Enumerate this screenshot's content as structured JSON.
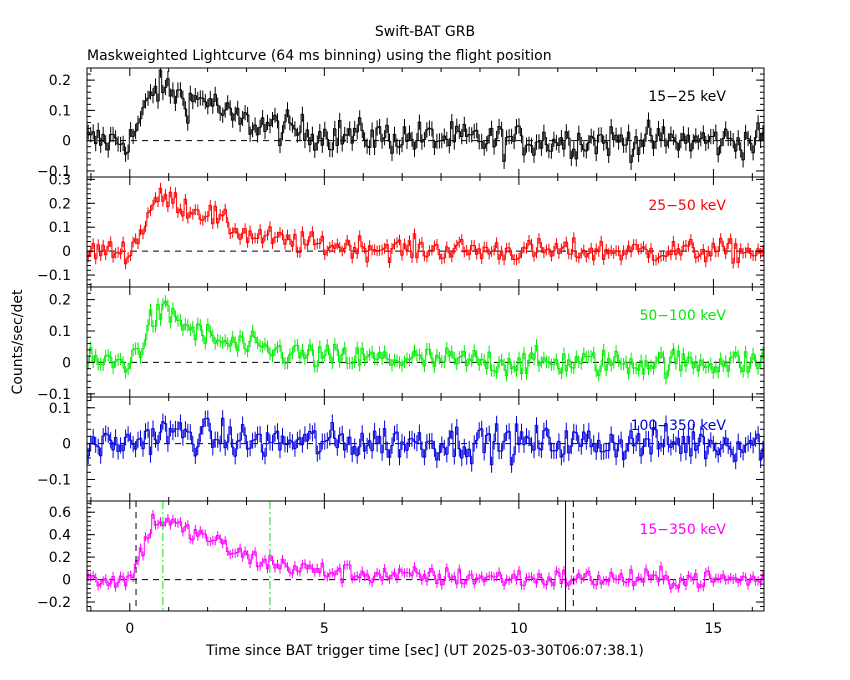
{
  "chart_data": {
    "type": "line",
    "title": "Swift-BAT GRB",
    "subtitle": "Maskweighted Lightcurve (64 ms binning) using the flight position",
    "xlabel": "Time since BAT trigger time [sec] (UT 2025-03-30T06:07:38.1)",
    "ylabel": "Counts/sec/det",
    "xlim": [
      -1.1,
      16.3
    ],
    "x_ticks": [
      0,
      5,
      10,
      15
    ],
    "grid": false,
    "bin_width_sec": 0.064,
    "panels": [
      {
        "name": "15-25 keV",
        "label": "15−25 keV",
        "color": "#000000",
        "ylim": [
          -0.12,
          0.24
        ],
        "y_ticks": [
          -0.1,
          0,
          0.1,
          0.2
        ],
        "y_tick_labels": [
          "−0.1",
          "0",
          "0.1",
          "0.2"
        ],
        "envelope": {
          "x": [
            -1.1,
            0,
            0.3,
            0.6,
            1.0,
            1.5,
            2.0,
            2.5,
            3.0,
            4.0,
            5.0,
            7.0,
            10.0,
            16.3
          ],
          "y": [
            0,
            0,
            0.07,
            0.17,
            0.17,
            0.13,
            0.14,
            0.08,
            0.06,
            0.04,
            0.02,
            0.01,
            0,
            0
          ]
        },
        "noise_sigma": 0.028
      },
      {
        "name": "25-50 keV",
        "label": "25−50 keV",
        "color": "#ff0000",
        "ylim": [
          -0.15,
          0.31
        ],
        "y_ticks": [
          -0.1,
          0,
          0.1,
          0.2,
          0.3
        ],
        "y_tick_labels": [
          "−0.1",
          "0",
          "0.1",
          "0.2",
          "0.3"
        ],
        "envelope": {
          "x": [
            -1.1,
            0,
            0.3,
            0.6,
            1.0,
            1.5,
            2.0,
            2.5,
            3.0,
            4.0,
            5.0,
            7.0,
            10.0,
            16.3
          ],
          "y": [
            0,
            0,
            0.08,
            0.21,
            0.22,
            0.18,
            0.16,
            0.11,
            0.07,
            0.04,
            0.025,
            0.01,
            0,
            0
          ]
        },
        "noise_sigma": 0.025
      },
      {
        "name": "50-100 keV",
        "label": "50−100 keV",
        "color": "#00ee00",
        "ylim": [
          -0.11,
          0.24
        ],
        "y_ticks": [
          -0.1,
          0,
          0.1,
          0.2
        ],
        "y_tick_labels": [
          "−0.1",
          "0",
          "0.1",
          "0.2"
        ],
        "envelope": {
          "x": [
            -1.1,
            0,
            0.3,
            0.6,
            1.0,
            1.5,
            2.0,
            2.5,
            3.0,
            4.0,
            5.0,
            7.0,
            10.0,
            16.3
          ],
          "y": [
            0,
            0,
            0.06,
            0.14,
            0.16,
            0.11,
            0.08,
            0.06,
            0.05,
            0.03,
            0.015,
            0.01,
            0,
            0
          ]
        },
        "noise_sigma": 0.022
      },
      {
        "name": "100-350 keV",
        "label": "100−350 keV",
        "color": "#0000dd",
        "ylim": [
          -0.16,
          0.13
        ],
        "y_ticks": [
          -0.1,
          0,
          0.1
        ],
        "y_tick_labels": [
          "−0.1",
          "0",
          "0.1"
        ],
        "envelope": {
          "x": [
            -1.1,
            0,
            0.5,
            1.0,
            2.0,
            3.0,
            16.3
          ],
          "y": [
            0,
            0,
            0.02,
            0.03,
            0.02,
            0.005,
            0
          ]
        },
        "noise_sigma": 0.025
      },
      {
        "name": "15-350 keV",
        "label": "15−350 keV",
        "color": "#ff00ff",
        "ylim": [
          -0.28,
          0.7
        ],
        "y_ticks": [
          -0.2,
          0,
          0.2,
          0.4,
          0.6
        ],
        "y_tick_labels": [
          "−0.2",
          "0",
          "0.2",
          "0.4",
          "0.6"
        ],
        "envelope": {
          "x": [
            -1.1,
            0,
            0.3,
            0.6,
            1.0,
            1.5,
            2.0,
            2.5,
            3.0,
            4.0,
            5.0,
            7.0,
            10.0,
            16.3
          ],
          "y": [
            0,
            0,
            0.25,
            0.52,
            0.52,
            0.42,
            0.38,
            0.28,
            0.2,
            0.12,
            0.07,
            0.03,
            0.01,
            0
          ]
        },
        "noise_sigma": 0.045,
        "markers": [
          {
            "x": 0.16,
            "style": "dashed",
            "color": "#000000"
          },
          {
            "x": 0.85,
            "style": "dashdot",
            "color": "#00ee00"
          },
          {
            "x": 3.6,
            "style": "dashdot",
            "color": "#00ee00"
          },
          {
            "x": 11.2,
            "style": "solid",
            "color": "#000000"
          },
          {
            "x": 11.4,
            "style": "dashed",
            "color": "#000000"
          }
        ]
      }
    ]
  }
}
